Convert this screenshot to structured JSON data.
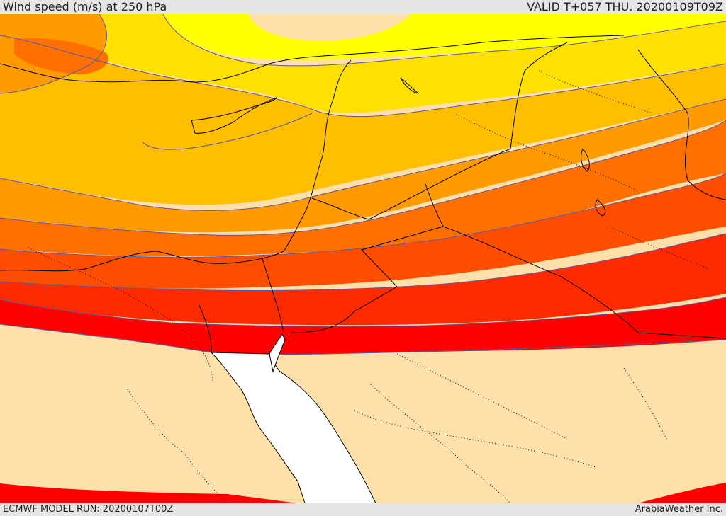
{
  "header": {
    "title": "Wind speed (m/s) at 250 hPa",
    "valid": "VALID T+057 THU. 20200109T09Z"
  },
  "footer": {
    "model_run": "ECMWF MODEL RUN: 20200107T00Z",
    "credit": "ArabiaWeather Inc."
  },
  "colors": {
    "band_1": "#ffe0aa",
    "band_2": "#ffff00",
    "band_3": "#ffe000",
    "band_4": "#ffbe00",
    "band_5": "#ff9a00",
    "band_6": "#ff7000",
    "band_7": "#ff4e00",
    "band_8": "#ff2a00",
    "band_9": "#ff0000",
    "sea": "#ffffff",
    "contour_line": "#5a5aa0",
    "border": "#000000"
  }
}
